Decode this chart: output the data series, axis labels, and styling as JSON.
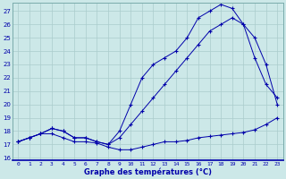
{
  "background_color": "#cce8e8",
  "grid_color": "#aacccc",
  "line_color": "#0000aa",
  "x_label": "Graphe des températures (°C)",
  "xlim": [
    -0.5,
    23.5
  ],
  "ylim": [
    15.8,
    27.6
  ],
  "yticks": [
    16,
    17,
    18,
    19,
    20,
    21,
    22,
    23,
    24,
    25,
    26,
    27
  ],
  "xticks": [
    0,
    1,
    2,
    3,
    4,
    5,
    6,
    7,
    8,
    9,
    10,
    11,
    12,
    13,
    14,
    15,
    16,
    17,
    18,
    19,
    20,
    21,
    22,
    23
  ],
  "series1": [
    17.2,
    17.5,
    17.8,
    17.8,
    17.5,
    17.2,
    17.2,
    17.1,
    16.8,
    16.6,
    16.6,
    16.8,
    17.0,
    17.2,
    17.2,
    17.3,
    17.5,
    17.6,
    17.7,
    17.8,
    17.9,
    18.1,
    18.5,
    19.0
  ],
  "series2": [
    17.2,
    17.5,
    17.8,
    18.2,
    18.0,
    17.5,
    17.5,
    17.2,
    17.0,
    17.5,
    18.5,
    19.5,
    20.5,
    21.5,
    22.5,
    23.5,
    24.5,
    25.5,
    26.0,
    26.5,
    26.0,
    25.0,
    23.0,
    20.0
  ],
  "series3": [
    17.2,
    17.5,
    17.8,
    18.2,
    18.0,
    17.5,
    17.5,
    17.2,
    17.0,
    18.0,
    20.0,
    22.0,
    23.0,
    23.5,
    24.0,
    25.0,
    26.5,
    27.0,
    27.5,
    27.2,
    26.0,
    23.5,
    21.5,
    20.5
  ]
}
